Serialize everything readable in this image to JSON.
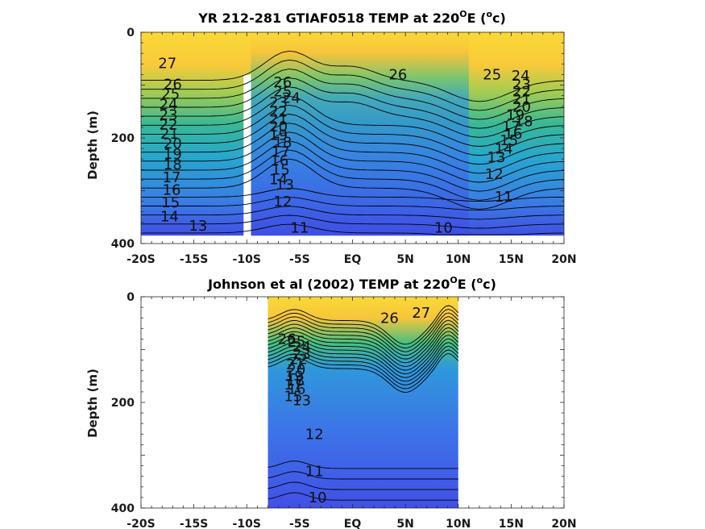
{
  "colors": {
    "warm": "#f9d936",
    "mid": "#2fb597",
    "cool": "#3d4ee6",
    "line": "#000000",
    "gap": "#ffffff"
  },
  "chart_data": [
    {
      "type": "heatmap",
      "title": "YR 212-281 GTIAF0518 TEMP at 220",
      "title_sup": "O",
      "title_tail": "E (",
      "title_unit_sup": "o",
      "title_unit": "c)",
      "ylabel": "Depth (m)",
      "xlim": [
        -20,
        20
      ],
      "ylim": [
        0,
        400
      ],
      "y_reversed": true,
      "xticks": [
        -20,
        -15,
        -10,
        -5,
        0,
        5,
        10,
        15,
        20
      ],
      "xtick_labels": [
        "-20S",
        "-15S",
        "-10S",
        "-5S",
        "EQ",
        "5N",
        "10N",
        "15N",
        "20N"
      ],
      "yticks": [
        0,
        200,
        400
      ],
      "ytick_labels": [
        "0",
        "200",
        "400"
      ],
      "data_extent": {
        "x": [
          -20,
          20
        ],
        "y": [
          0,
          385
        ]
      },
      "masked_gap": {
        "x": [
          -10.3,
          -9.6
        ],
        "y": [
          80,
          400
        ]
      },
      "contour_levels": [
        10,
        11,
        12,
        13,
        14,
        15,
        16,
        17,
        18,
        19,
        20,
        21,
        22,
        23,
        24,
        25,
        26,
        27
      ],
      "contour_labels": [
        {
          "text": "27",
          "x": -17.5,
          "y": 60
        },
        {
          "text": "26",
          "x": -17.0,
          "y": 100
        },
        {
          "text": "25",
          "x": -17.2,
          "y": 118
        },
        {
          "text": "24",
          "x": -17.4,
          "y": 138
        },
        {
          "text": "23",
          "x": -17.4,
          "y": 158
        },
        {
          "text": "22",
          "x": -17.4,
          "y": 176
        },
        {
          "text": "21",
          "x": -17.3,
          "y": 194
        },
        {
          "text": "20",
          "x": -17.0,
          "y": 212
        },
        {
          "text": "19",
          "x": -17.0,
          "y": 232
        },
        {
          "text": "18",
          "x": -17.0,
          "y": 252
        },
        {
          "text": "17",
          "x": -17.1,
          "y": 276
        },
        {
          "text": "16",
          "x": -17.1,
          "y": 300
        },
        {
          "text": "15",
          "x": -17.2,
          "y": 324
        },
        {
          "text": "14",
          "x": -17.3,
          "y": 350
        },
        {
          "text": "13",
          "x": -14.6,
          "y": 368
        },
        {
          "text": "26",
          "x": -6.6,
          "y": 96
        },
        {
          "text": "25",
          "x": -6.6,
          "y": 114
        },
        {
          "text": "24",
          "x": -5.8,
          "y": 126
        },
        {
          "text": "23",
          "x": -7.0,
          "y": 134
        },
        {
          "text": "22",
          "x": -7.0,
          "y": 152
        },
        {
          "text": "21",
          "x": -7.0,
          "y": 166
        },
        {
          "text": "20",
          "x": -7.0,
          "y": 180
        },
        {
          "text": "19",
          "x": -7.0,
          "y": 196
        },
        {
          "text": "18",
          "x": -6.6,
          "y": 210
        },
        {
          "text": "17",
          "x": -6.8,
          "y": 228
        },
        {
          "text": "16",
          "x": -6.9,
          "y": 244
        },
        {
          "text": "15",
          "x": -6.8,
          "y": 262
        },
        {
          "text": "14",
          "x": -7.0,
          "y": 280
        },
        {
          "text": "13",
          "x": -6.4,
          "y": 290
        },
        {
          "text": "12",
          "x": -6.6,
          "y": 322
        },
        {
          "text": "11",
          "x": -5.0,
          "y": 372
        },
        {
          "text": "10",
          "x": 8.6,
          "y": 372
        },
        {
          "text": "11",
          "x": 14.3,
          "y": 313
        },
        {
          "text": "12",
          "x": 13.4,
          "y": 270
        },
        {
          "text": "13",
          "x": 13.6,
          "y": 238
        },
        {
          "text": "14",
          "x": 14.3,
          "y": 222
        },
        {
          "text": "15",
          "x": 14.8,
          "y": 206
        },
        {
          "text": "16",
          "x": 15.2,
          "y": 194
        },
        {
          "text": "17",
          "x": 15.0,
          "y": 180
        },
        {
          "text": "18",
          "x": 16.2,
          "y": 170
        },
        {
          "text": "19",
          "x": 15.4,
          "y": 158
        },
        {
          "text": "20",
          "x": 16.0,
          "y": 143
        },
        {
          "text": "21",
          "x": 16.0,
          "y": 128
        },
        {
          "text": "22",
          "x": 16.0,
          "y": 114
        },
        {
          "text": "23",
          "x": 16.0,
          "y": 100
        },
        {
          "text": "24",
          "x": 15.9,
          "y": 84
        },
        {
          "text": "25",
          "x": 13.2,
          "y": 82
        },
        {
          "text": "26",
          "x": 4.3,
          "y": 82
        }
      ]
    },
    {
      "type": "heatmap",
      "title": "Johnson et al (2002) TEMP at 220",
      "title_sup": "O",
      "title_tail": "E (",
      "title_unit_sup": "o",
      "title_unit": "c)",
      "ylabel": "Depth (m)",
      "xlim": [
        -20,
        20
      ],
      "ylim": [
        0,
        400
      ],
      "y_reversed": true,
      "xticks": [
        -20,
        -15,
        -10,
        -5,
        0,
        5,
        10,
        15,
        20
      ],
      "xtick_labels": [
        "-20S",
        "-15S",
        "-10S",
        "-5S",
        "EQ",
        "5N",
        "10N",
        "15N",
        "20N"
      ],
      "yticks": [
        0,
        200,
        400
      ],
      "ytick_labels": [
        "0",
        "200",
        "400"
      ],
      "data_extent": {
        "x": [
          -8,
          10
        ],
        "y": [
          0,
          400
        ]
      },
      "contour_levels": [
        10,
        11,
        12,
        13,
        14,
        15,
        16,
        17,
        18,
        19,
        20,
        21,
        22,
        23,
        24,
        25,
        26,
        27
      ],
      "contour_labels": [
        {
          "text": "27",
          "x": 6.5,
          "y": 32
        },
        {
          "text": "26",
          "x": 3.5,
          "y": 42
        },
        {
          "text": "26",
          "x": -6.2,
          "y": 82
        },
        {
          "text": "25",
          "x": -5.3,
          "y": 86
        },
        {
          "text": "24",
          "x": -4.8,
          "y": 96
        },
        {
          "text": "23",
          "x": -4.8,
          "y": 110
        },
        {
          "text": "22",
          "x": -5.1,
          "y": 120
        },
        {
          "text": "21",
          "x": -5.4,
          "y": 130
        },
        {
          "text": "20",
          "x": -5.3,
          "y": 140
        },
        {
          "text": "19",
          "x": -5.5,
          "y": 152
        },
        {
          "text": "18",
          "x": -5.4,
          "y": 160
        },
        {
          "text": "17",
          "x": -5.6,
          "y": 168
        },
        {
          "text": "16",
          "x": -5.3,
          "y": 176
        },
        {
          "text": "15",
          "x": -5.6,
          "y": 190
        },
        {
          "text": "13",
          "x": -4.8,
          "y": 198
        },
        {
          "text": "12",
          "x": -3.6,
          "y": 262
        },
        {
          "text": "11",
          "x": -3.6,
          "y": 332
        },
        {
          "text": "10",
          "x": -3.3,
          "y": 382
        }
      ]
    }
  ]
}
